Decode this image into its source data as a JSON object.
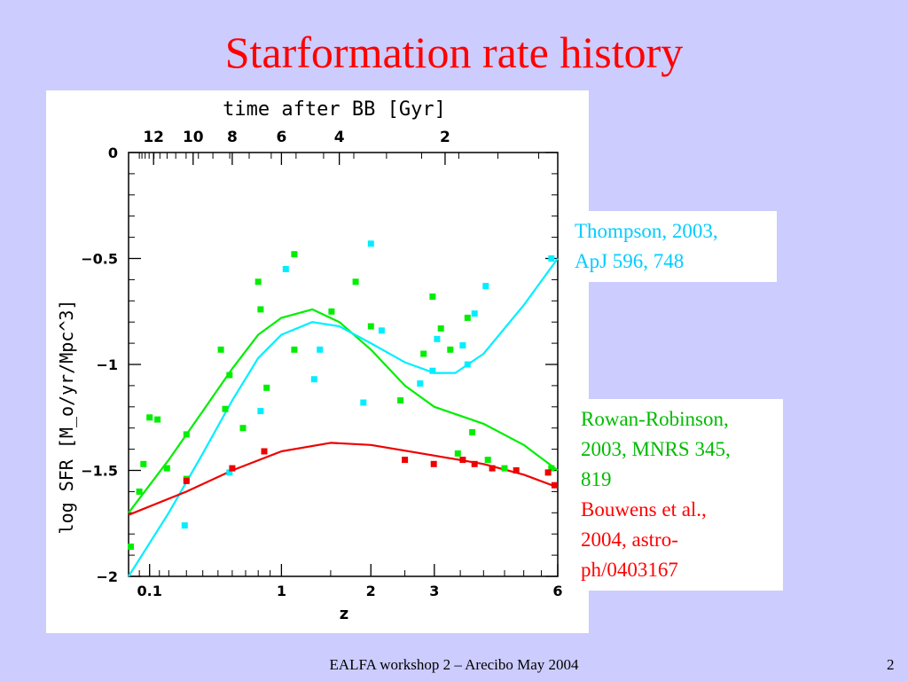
{
  "slide": {
    "title": "Starformation rate history",
    "footer": "EALFA workshop 2 – Arecibo May 2004",
    "page_number": "2"
  },
  "legend": {
    "thompson_line1": "Thompson, 2003,",
    "thompson_line2": "ApJ 596, 748",
    "rowan_line1": "Rowan-Robinson,",
    "rowan_line2": "2003, MNRS 345,",
    "rowan_line3": "819",
    "bouwens_line1": "Bouwens et al.,",
    "bouwens_line2": "2004, astro-",
    "bouwens_line3": "ph/0403167"
  },
  "colors": {
    "rowan_robinson": "#00ee00",
    "thompson": "#00eeff",
    "bouwens": "#ee0000",
    "title": "#ff0000",
    "background": "#ccccff"
  },
  "chart_data": {
    "type": "scatter",
    "xlabel": "z",
    "ylabel": "log SFR [M_o/yr/Mpc^3]",
    "top_axis_label": "time after BB [Gyr]",
    "x_scale": "log(1+z)",
    "xlim": [
      0,
      6
    ],
    "ylim": [
      -2,
      0
    ],
    "x_ticks": [
      {
        "value": 0.1,
        "label": "0.1"
      },
      {
        "value": 1,
        "label": "1"
      },
      {
        "value": 2,
        "label": "2"
      },
      {
        "value": 3,
        "label": "3"
      },
      {
        "value": 6,
        "label": "6"
      }
    ],
    "y_ticks": [
      {
        "value": 0,
        "label": "0"
      },
      {
        "value": -0.5,
        "label": "−0.5"
      },
      {
        "value": -1,
        "label": "−1"
      },
      {
        "value": -1.5,
        "label": "−1.5"
      },
      {
        "value": -2,
        "label": "−2"
      }
    ],
    "top_ticks": [
      {
        "z": 0.12,
        "label": "12"
      },
      {
        "z": 0.34,
        "label": "10"
      },
      {
        "z": 0.6,
        "label": "8"
      },
      {
        "z": 1.0,
        "label": "6"
      },
      {
        "z": 1.6,
        "label": "4"
      },
      {
        "z": 3.2,
        "label": "2"
      }
    ],
    "series": [
      {
        "name": "Rowan-Robinson",
        "color": "#00ee00",
        "marker": "square",
        "points": [
          [
            0.01,
            -1.86
          ],
          [
            0.05,
            -1.6
          ],
          [
            0.07,
            -1.47
          ],
          [
            0.1,
            -1.25
          ],
          [
            0.14,
            -1.26
          ],
          [
            0.19,
            -1.49
          ],
          [
            0.3,
            -1.54
          ],
          [
            0.3,
            -1.33
          ],
          [
            0.52,
            -0.93
          ],
          [
            0.55,
            -1.21
          ],
          [
            0.58,
            -1.05
          ],
          [
            0.68,
            -1.3
          ],
          [
            0.8,
            -0.61
          ],
          [
            0.82,
            -0.74
          ],
          [
            0.87,
            -1.11
          ],
          [
            1.12,
            -0.48
          ],
          [
            1.12,
            -0.93
          ],
          [
            1.51,
            -0.75
          ],
          [
            1.8,
            -0.61
          ],
          [
            2.0,
            -0.82
          ],
          [
            2.43,
            -1.17
          ],
          [
            2.81,
            -0.95
          ],
          [
            2.97,
            -0.68
          ],
          [
            3.12,
            -0.83
          ],
          [
            3.3,
            -0.93
          ],
          [
            3.45,
            -1.42
          ],
          [
            3.65,
            -0.78
          ],
          [
            3.75,
            -1.32
          ],
          [
            4.1,
            -1.45
          ],
          [
            4.5,
            -1.49
          ],
          [
            5.8,
            -1.49
          ]
        ]
      },
      {
        "name": "Thompson",
        "color": "#00eeff",
        "marker": "square",
        "points": [
          [
            0.29,
            -1.76
          ],
          [
            0.58,
            -1.51
          ],
          [
            0.82,
            -1.22
          ],
          [
            1.04,
            -0.55
          ],
          [
            1.32,
            -1.07
          ],
          [
            1.38,
            -0.93
          ],
          [
            1.9,
            -1.18
          ],
          [
            2.0,
            -0.43
          ],
          [
            2.15,
            -0.84
          ],
          [
            2.75,
            -1.09
          ],
          [
            2.97,
            -1.03
          ],
          [
            3.05,
            -0.88
          ],
          [
            3.55,
            -0.91
          ],
          [
            3.65,
            -1.0
          ],
          [
            3.8,
            -0.76
          ],
          [
            4.05,
            -0.63
          ],
          [
            5.8,
            -0.5
          ]
        ]
      },
      {
        "name": "Bouwens",
        "color": "#ee0000",
        "marker": "square",
        "points": [
          [
            0.3,
            -1.55
          ],
          [
            0.6,
            -1.49
          ],
          [
            0.85,
            -1.41
          ],
          [
            2.5,
            -1.45
          ],
          [
            2.99,
            -1.47
          ],
          [
            3.55,
            -1.45
          ],
          [
            3.8,
            -1.47
          ],
          [
            4.2,
            -1.49
          ],
          [
            4.8,
            -1.5
          ],
          [
            5.7,
            -1.51
          ],
          [
            5.9,
            -1.57
          ]
        ]
      }
    ],
    "curves": [
      {
        "name": "Rowan-Robinson",
        "color": "#00ee00",
        "points": [
          [
            0.0,
            -1.7
          ],
          [
            0.2,
            -1.45
          ],
          [
            0.4,
            -1.22
          ],
          [
            0.6,
            -1.02
          ],
          [
            0.8,
            -0.86
          ],
          [
            1.0,
            -0.78
          ],
          [
            1.3,
            -0.74
          ],
          [
            1.6,
            -0.8
          ],
          [
            2.0,
            -0.93
          ],
          [
            2.5,
            -1.1
          ],
          [
            3.0,
            -1.2
          ],
          [
            4.0,
            -1.28
          ],
          [
            5.0,
            -1.38
          ],
          [
            6.0,
            -1.5
          ]
        ]
      },
      {
        "name": "Thompson",
        "color": "#00eeff",
        "points": [
          [
            0.0,
            -2.0
          ],
          [
            0.2,
            -1.7
          ],
          [
            0.4,
            -1.42
          ],
          [
            0.6,
            -1.17
          ],
          [
            0.8,
            -0.97
          ],
          [
            1.0,
            -0.86
          ],
          [
            1.3,
            -0.8
          ],
          [
            1.6,
            -0.82
          ],
          [
            2.0,
            -0.9
          ],
          [
            2.5,
            -0.99
          ],
          [
            3.0,
            -1.04
          ],
          [
            3.4,
            -1.04
          ],
          [
            4.0,
            -0.95
          ],
          [
            5.0,
            -0.72
          ],
          [
            6.0,
            -0.5
          ]
        ]
      },
      {
        "name": "Bouwens",
        "color": "#ee0000",
        "points": [
          [
            0.0,
            -1.71
          ],
          [
            0.3,
            -1.6
          ],
          [
            0.6,
            -1.5
          ],
          [
            1.0,
            -1.41
          ],
          [
            1.5,
            -1.37
          ],
          [
            2.0,
            -1.38
          ],
          [
            3.0,
            -1.43
          ],
          [
            4.0,
            -1.47
          ],
          [
            5.0,
            -1.52
          ],
          [
            6.0,
            -1.58
          ]
        ]
      }
    ]
  }
}
